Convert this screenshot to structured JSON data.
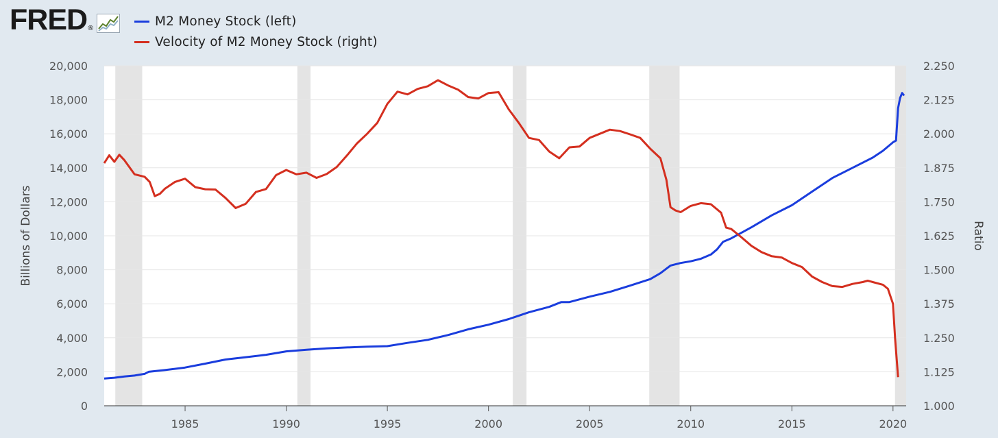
{
  "logo": {
    "text": "FRED",
    "registered": "®"
  },
  "legend": [
    {
      "label": "M2 Money Stock (left)",
      "color": "#1a3ddd"
    },
    {
      "label": "Velocity of M2 Money Stock (right)",
      "color": "#d42f1f"
    }
  ],
  "chart_data": {
    "type": "line",
    "xlim": [
      1981.0,
      2020.65
    ],
    "x_ticks": [
      1985,
      1990,
      1995,
      2000,
      2005,
      2010,
      2015,
      2020
    ],
    "left_axis": {
      "label": "Billions of Dollars",
      "ylim": [
        0,
        20000
      ],
      "ticks": [
        "0",
        "2,000",
        "4,000",
        "6,000",
        "8,000",
        "10,000",
        "12,000",
        "14,000",
        "16,000",
        "18,000",
        "20,000"
      ]
    },
    "right_axis": {
      "label": "Ratio",
      "ylim": [
        1.0,
        2.25
      ],
      "ticks": [
        "1.000",
        "1.125",
        "1.250",
        "1.375",
        "1.500",
        "1.625",
        "1.750",
        "1.875",
        "2.000",
        "2.125",
        "2.250"
      ]
    },
    "recessions": [
      [
        1981.55,
        1982.88
      ],
      [
        1990.55,
        1991.2
      ],
      [
        2001.2,
        2001.88
      ],
      [
        2007.95,
        2009.45
      ],
      [
        2020.1,
        2020.65
      ]
    ],
    "grid": true,
    "series": [
      {
        "name": "M2 Money Stock (left)",
        "axis": "left",
        "color": "#1a3ddd",
        "points": [
          [
            1981.0,
            1600
          ],
          [
            1981.5,
            1650
          ],
          [
            1982.0,
            1720
          ],
          [
            1982.5,
            1780
          ],
          [
            1983.0,
            1880
          ],
          [
            1983.2,
            2000
          ],
          [
            1984.0,
            2100
          ],
          [
            1985.0,
            2250
          ],
          [
            1986.0,
            2480
          ],
          [
            1987.0,
            2720
          ],
          [
            1988.0,
            2860
          ],
          [
            1989.0,
            3000
          ],
          [
            1990.0,
            3200
          ],
          [
            1991.0,
            3300
          ],
          [
            1992.0,
            3380
          ],
          [
            1993.0,
            3430
          ],
          [
            1994.0,
            3480
          ],
          [
            1995.0,
            3510
          ],
          [
            1996.0,
            3700
          ],
          [
            1997.0,
            3880
          ],
          [
            1998.0,
            4160
          ],
          [
            1999.0,
            4500
          ],
          [
            2000.0,
            4770
          ],
          [
            2001.0,
            5100
          ],
          [
            2002.0,
            5500
          ],
          [
            2003.0,
            5820
          ],
          [
            2003.6,
            6100
          ],
          [
            2004.0,
            6100
          ],
          [
            2005.0,
            6420
          ],
          [
            2006.0,
            6700
          ],
          [
            2007.0,
            7070
          ],
          [
            2008.0,
            7450
          ],
          [
            2008.5,
            7800
          ],
          [
            2009.0,
            8250
          ],
          [
            2009.5,
            8400
          ],
          [
            2010.0,
            8500
          ],
          [
            2010.5,
            8650
          ],
          [
            2011.0,
            8900
          ],
          [
            2011.3,
            9200
          ],
          [
            2011.6,
            9650
          ],
          [
            2012.0,
            9850
          ],
          [
            2013.0,
            10500
          ],
          [
            2014.0,
            11200
          ],
          [
            2015.0,
            11800
          ],
          [
            2016.0,
            12600
          ],
          [
            2017.0,
            13400
          ],
          [
            2018.0,
            14000
          ],
          [
            2019.0,
            14600
          ],
          [
            2019.5,
            15000
          ],
          [
            2020.0,
            15500
          ],
          [
            2020.15,
            15600
          ],
          [
            2020.25,
            17500
          ],
          [
            2020.35,
            18100
          ],
          [
            2020.45,
            18400
          ],
          [
            2020.55,
            18250
          ]
        ]
      },
      {
        "name": "Velocity of M2 Money Stock (right)",
        "axis": "right",
        "color": "#d42f1f",
        "points": [
          [
            1981.0,
            1.892
          ],
          [
            1981.25,
            1.921
          ],
          [
            1981.5,
            1.897
          ],
          [
            1981.75,
            1.923
          ],
          [
            1982.0,
            1.903
          ],
          [
            1982.5,
            1.851
          ],
          [
            1983.0,
            1.842
          ],
          [
            1983.25,
            1.823
          ],
          [
            1983.5,
            1.771
          ],
          [
            1983.75,
            1.779
          ],
          [
            1984.0,
            1.798
          ],
          [
            1984.5,
            1.823
          ],
          [
            1985.0,
            1.835
          ],
          [
            1985.5,
            1.804
          ],
          [
            1986.0,
            1.796
          ],
          [
            1986.5,
            1.795
          ],
          [
            1987.0,
            1.764
          ],
          [
            1987.5,
            1.727
          ],
          [
            1988.0,
            1.743
          ],
          [
            1988.5,
            1.786
          ],
          [
            1989.0,
            1.797
          ],
          [
            1989.5,
            1.848
          ],
          [
            1990.0,
            1.867
          ],
          [
            1990.5,
            1.851
          ],
          [
            1991.0,
            1.857
          ],
          [
            1991.5,
            1.838
          ],
          [
            1992.0,
            1.852
          ],
          [
            1992.5,
            1.878
          ],
          [
            1993.0,
            1.92
          ],
          [
            1993.5,
            1.965
          ],
          [
            1994.0,
            2.0
          ],
          [
            1994.5,
            2.04
          ],
          [
            1995.0,
            2.11
          ],
          [
            1995.5,
            2.155
          ],
          [
            1996.0,
            2.145
          ],
          [
            1996.5,
            2.165
          ],
          [
            1997.0,
            2.175
          ],
          [
            1997.5,
            2.197
          ],
          [
            1998.0,
            2.178
          ],
          [
            1998.5,
            2.162
          ],
          [
            1999.0,
            2.135
          ],
          [
            1999.5,
            2.13
          ],
          [
            2000.0,
            2.15
          ],
          [
            2000.5,
            2.153
          ],
          [
            2001.0,
            2.09
          ],
          [
            2001.5,
            2.04
          ],
          [
            2002.0,
            1.985
          ],
          [
            2002.5,
            1.977
          ],
          [
            2003.0,
            1.935
          ],
          [
            2003.5,
            1.91
          ],
          [
            2004.0,
            1.95
          ],
          [
            2004.5,
            1.953
          ],
          [
            2005.0,
            1.985
          ],
          [
            2005.5,
            2.0
          ],
          [
            2006.0,
            2.015
          ],
          [
            2006.5,
            2.01
          ],
          [
            2007.0,
            1.998
          ],
          [
            2007.5,
            1.985
          ],
          [
            2008.0,
            1.945
          ],
          [
            2008.5,
            1.91
          ],
          [
            2008.8,
            1.83
          ],
          [
            2009.0,
            1.73
          ],
          [
            2009.25,
            1.718
          ],
          [
            2009.5,
            1.712
          ],
          [
            2010.0,
            1.735
          ],
          [
            2010.5,
            1.745
          ],
          [
            2011.0,
            1.741
          ],
          [
            2011.5,
            1.71
          ],
          [
            2011.75,
            1.655
          ],
          [
            2012.0,
            1.65
          ],
          [
            2012.5,
            1.62
          ],
          [
            2013.0,
            1.588
          ],
          [
            2013.5,
            1.565
          ],
          [
            2014.0,
            1.55
          ],
          [
            2014.5,
            1.545
          ],
          [
            2015.0,
            1.525
          ],
          [
            2015.5,
            1.51
          ],
          [
            2016.0,
            1.475
          ],
          [
            2016.5,
            1.455
          ],
          [
            2017.0,
            1.44
          ],
          [
            2017.5,
            1.437
          ],
          [
            2018.0,
            1.448
          ],
          [
            2018.5,
            1.455
          ],
          [
            2018.75,
            1.46
          ],
          [
            2019.0,
            1.455
          ],
          [
            2019.5,
            1.445
          ],
          [
            2019.75,
            1.43
          ],
          [
            2020.0,
            1.375
          ],
          [
            2020.1,
            1.25
          ],
          [
            2020.25,
            1.105
          ]
        ]
      }
    ]
  }
}
